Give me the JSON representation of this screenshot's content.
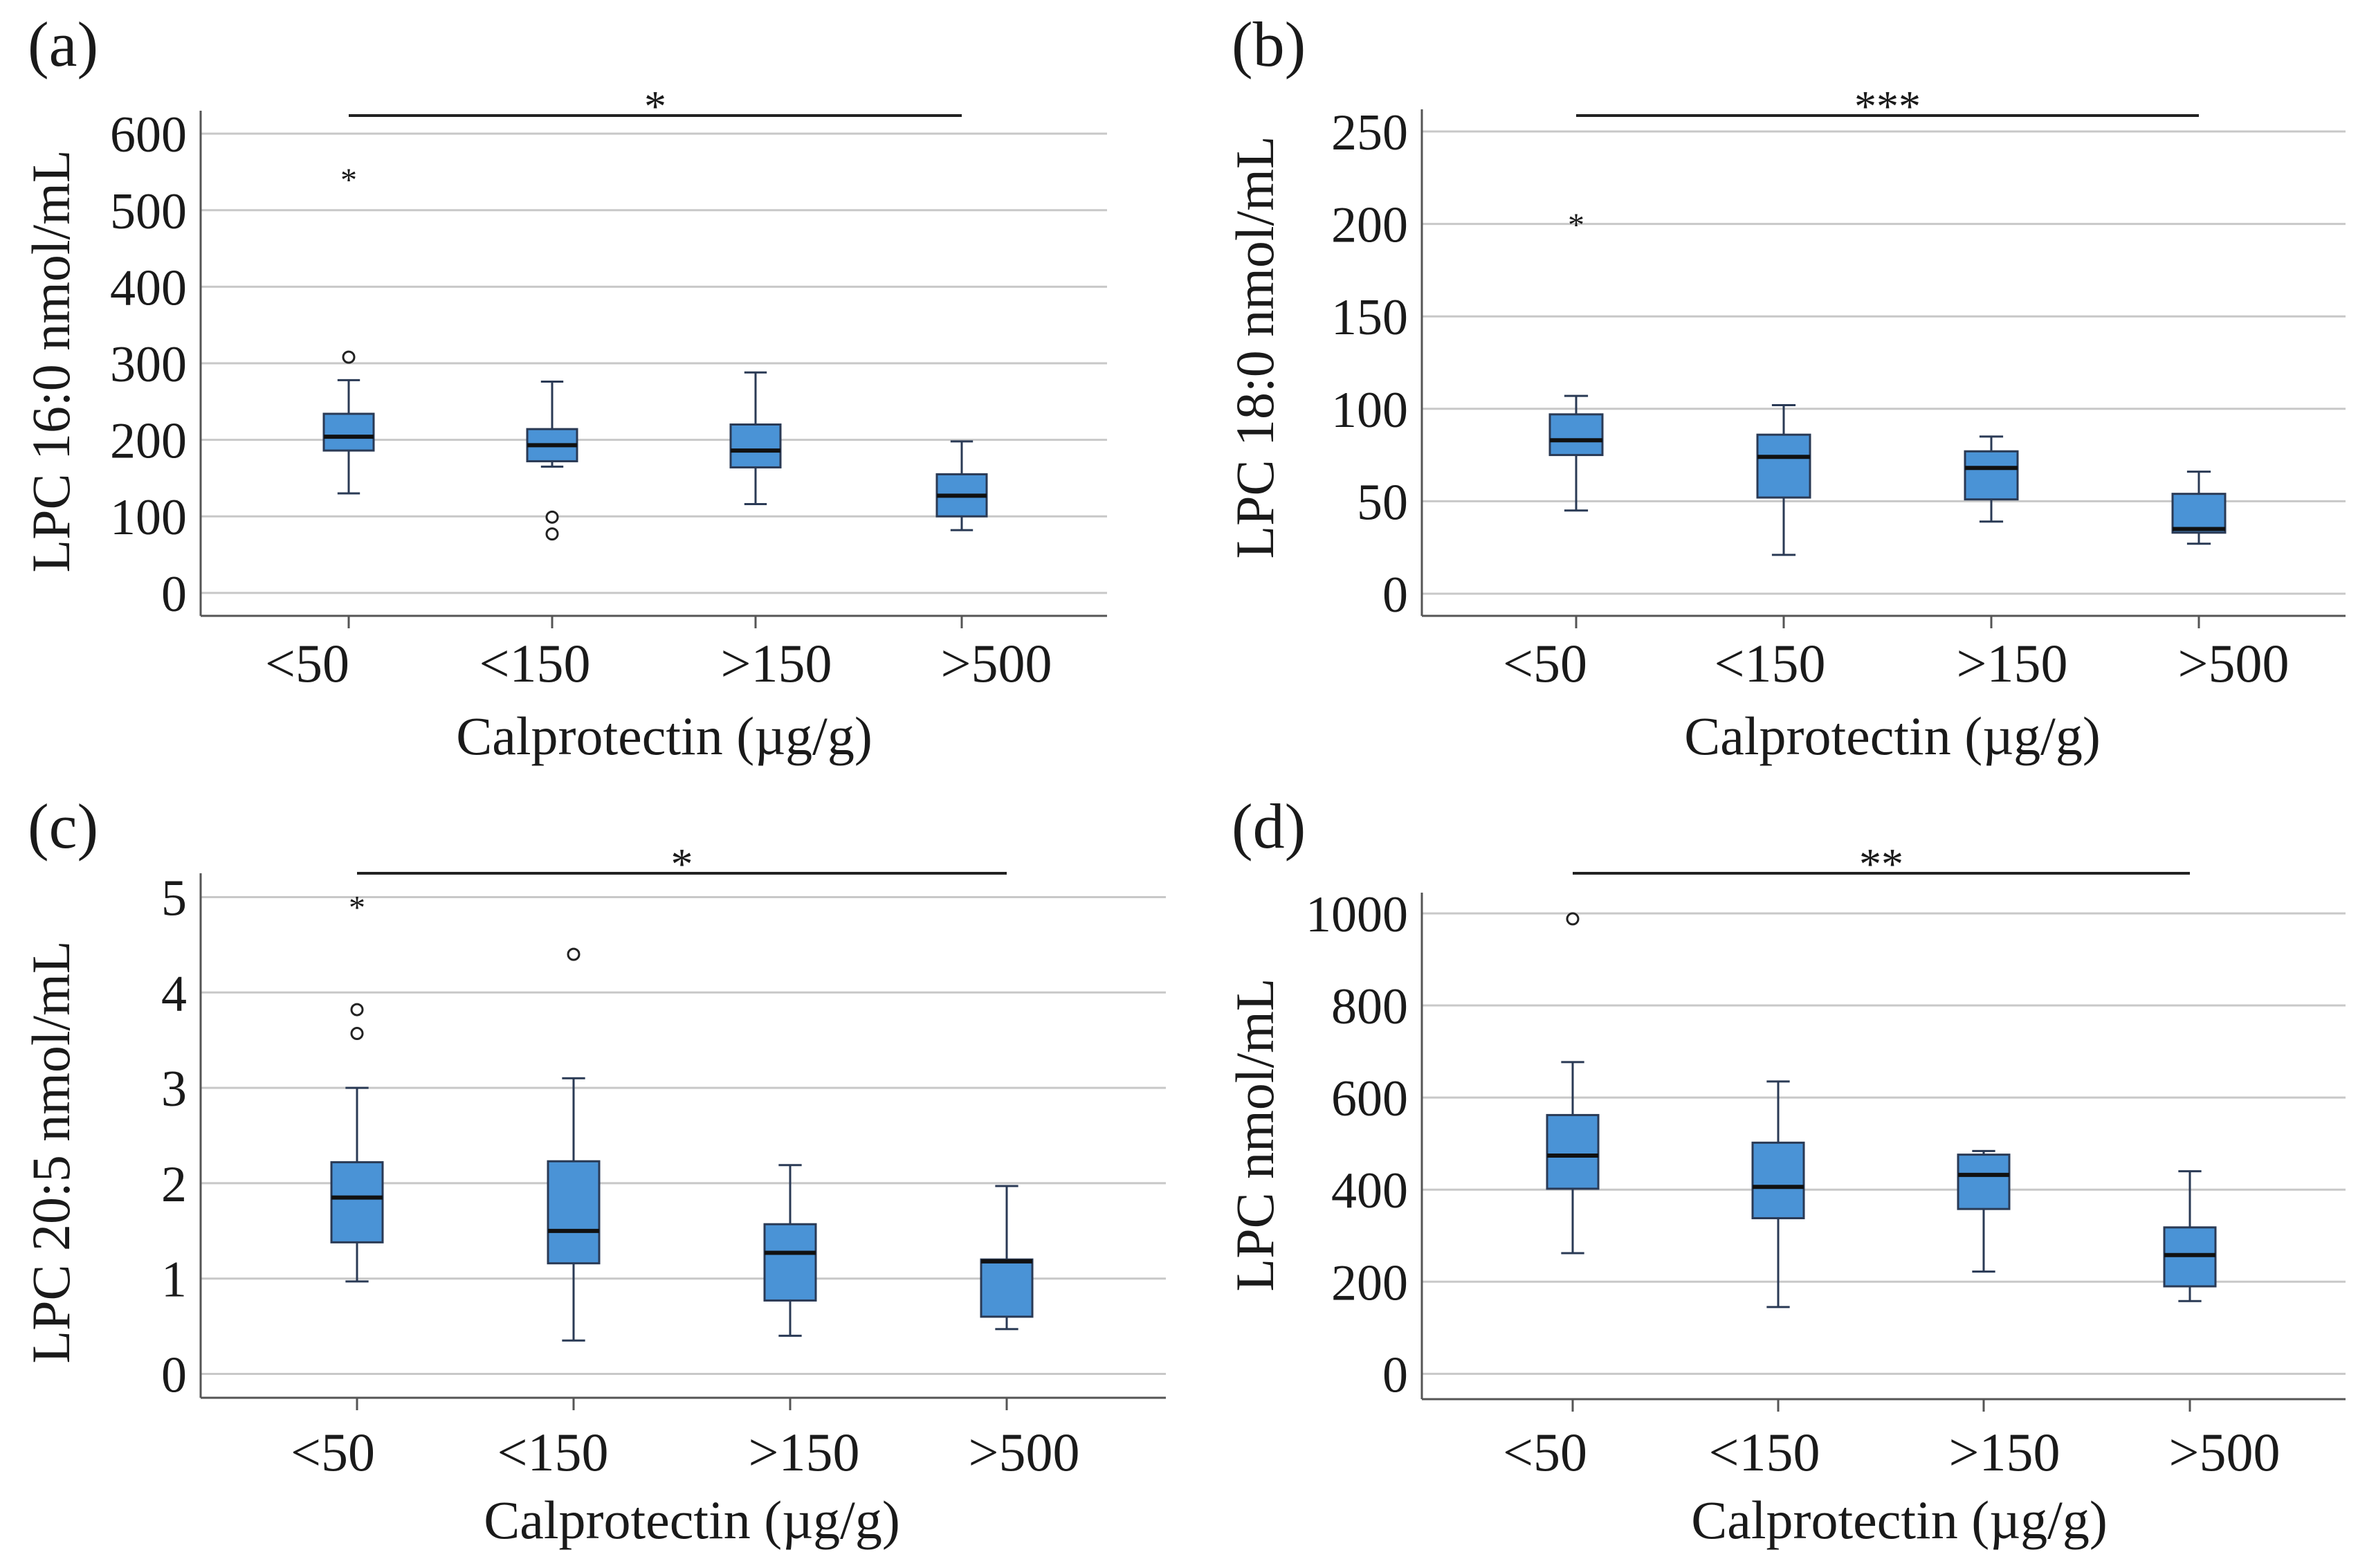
{
  "colors": {
    "box_fill": "#4a93d6",
    "box_stroke": "#2a3a55",
    "grid": "#c8c8c8",
    "axis": "#555555",
    "text": "#1a1a1a"
  },
  "chart_data": [
    {
      "type": "box",
      "panel_label": "(a)",
      "xlabel": "Calprotectin (µg/g)",
      "ylabel": "LPC 16:0 nmol/mL",
      "categories": [
        "<50",
        "<150",
        ">150",
        ">500"
      ],
      "ylim": [
        -30,
        630
      ],
      "yticks": [
        0,
        100,
        200,
        300,
        400,
        500,
        600
      ],
      "ytick_labels": [
        "0",
        "100",
        "200",
        "300",
        "400",
        "500",
        "600"
      ],
      "boxes": [
        {
          "whisker_low": 130,
          "q1": 186,
          "median": 204,
          "q3": 234,
          "whisker_high": 278,
          "outliers": [
            308
          ],
          "extremes": [
            543
          ]
        },
        {
          "whisker_low": 165,
          "q1": 172,
          "median": 193,
          "q3": 214,
          "whisker_high": 276,
          "outliers": [
            99,
            77
          ],
          "extremes": []
        },
        {
          "whisker_low": 116,
          "q1": 164,
          "median": 186,
          "q3": 220,
          "whisker_high": 288,
          "outliers": [],
          "extremes": []
        },
        {
          "whisker_low": 82,
          "q1": 100,
          "median": 127,
          "q3": 155,
          "whisker_high": 198,
          "outliers": [],
          "extremes": []
        }
      ],
      "significance": {
        "from": 0,
        "to": 3,
        "label": "*"
      }
    },
    {
      "type": "box",
      "panel_label": "(b)",
      "xlabel": "Calprotectin (µg/g)",
      "ylabel": "LPC 18:0 nmol/mL",
      "categories": [
        "<50",
        "<150",
        ">150",
        ">500"
      ],
      "ylim": [
        -12,
        262
      ],
      "yticks": [
        0,
        50,
        100,
        150,
        200,
        250
      ],
      "ytick_labels": [
        "0",
        "50",
        "100",
        "150",
        "200",
        "250"
      ],
      "boxes": [
        {
          "whisker_low": 45,
          "q1": 75,
          "median": 83,
          "q3": 97,
          "whisker_high": 107,
          "outliers": [],
          "extremes": [
            201
          ]
        },
        {
          "whisker_low": 21,
          "q1": 52,
          "median": 74,
          "q3": 86,
          "whisker_high": 102,
          "outliers": [],
          "extremes": []
        },
        {
          "whisker_low": 39,
          "q1": 51,
          "median": 68,
          "q3": 77,
          "whisker_high": 85,
          "outliers": [],
          "extremes": []
        },
        {
          "whisker_low": 27,
          "q1": 33,
          "median": 35,
          "q3": 54,
          "whisker_high": 66,
          "outliers": [],
          "extremes": []
        }
      ],
      "significance": {
        "from": 0,
        "to": 3,
        "label": "***"
      }
    },
    {
      "type": "box",
      "panel_label": "(c)",
      "xlabel": "Calprotectin (µg/g)",
      "ylabel": "LPC 20:5 nmol/mL",
      "categories": [
        "<50",
        "<150",
        ">150",
        ">500"
      ],
      "ylim": [
        -0.25,
        5.25
      ],
      "yticks": [
        0,
        1,
        2,
        3,
        4,
        5
      ],
      "ytick_labels": [
        "0",
        "1",
        "2",
        "3",
        "4",
        "5"
      ],
      "boxes": [
        {
          "whisker_low": 0.97,
          "q1": 1.38,
          "median": 1.85,
          "q3": 2.22,
          "whisker_high": 3.0,
          "outliers": [
            3.82,
            3.57
          ],
          "extremes": [
            4.92
          ]
        },
        {
          "whisker_low": 0.35,
          "q1": 1.16,
          "median": 1.5,
          "q3": 2.23,
          "whisker_high": 3.1,
          "outliers": [
            4.4
          ],
          "extremes": []
        },
        {
          "whisker_low": 0.4,
          "q1": 0.77,
          "median": 1.27,
          "q3": 1.57,
          "whisker_high": 2.19,
          "outliers": [],
          "extremes": []
        },
        {
          "whisker_low": 0.47,
          "q1": 0.6,
          "median": 1.18,
          "q3": 1.2,
          "whisker_high": 1.97,
          "outliers": [],
          "extremes": []
        }
      ],
      "significance": {
        "from": 0,
        "to": 3,
        "label": "*"
      }
    },
    {
      "type": "box",
      "panel_label": "(d)",
      "xlabel": "Calprotectin (µg/g)",
      "ylabel": "LPC  nmol/mL",
      "categories": [
        "<50",
        "<150",
        ">150",
        ">500"
      ],
      "ylim": [
        -55,
        1045
      ],
      "yticks": [
        0,
        200,
        400,
        600,
        800,
        1000
      ],
      "ytick_labels": [
        "0",
        "200",
        "400",
        "600",
        "800",
        "1000"
      ],
      "boxes": [
        {
          "whisker_low": 262,
          "q1": 402,
          "median": 474,
          "q3": 562,
          "whisker_high": 677,
          "outliers": [
            988
          ],
          "extremes": []
        },
        {
          "whisker_low": 145,
          "q1": 338,
          "median": 406,
          "q3": 502,
          "whisker_high": 635,
          "outliers": [],
          "extremes": []
        },
        {
          "whisker_low": 222,
          "q1": 358,
          "median": 432,
          "q3": 476,
          "whisker_high": 484,
          "outliers": [],
          "extremes": []
        },
        {
          "whisker_low": 158,
          "q1": 190,
          "median": 258,
          "q3": 318,
          "whisker_high": 440,
          "outliers": [],
          "extremes": []
        }
      ],
      "significance": {
        "from": 0,
        "to": 3,
        "label": "**"
      }
    }
  ]
}
